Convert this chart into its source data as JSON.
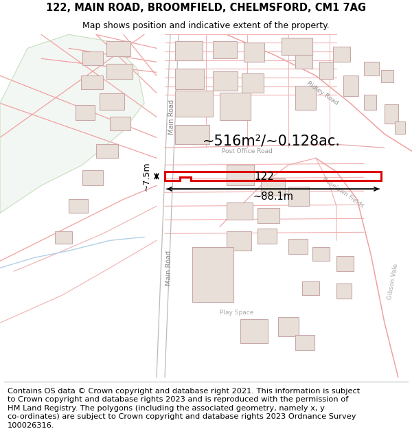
{
  "title_line1": "122, MAIN ROAD, BROOMFIELD, CHELMSFORD, CM1 7AG",
  "title_line2": "Map shows position and indicative extent of the property.",
  "area_label": "~516m²/~0.128ac.",
  "width_label": "~88.1m",
  "height_label": "~7.5m",
  "plot_number": "122",
  "bg_color": "#ffffff",
  "road_stroke": "#f0a0a0",
  "road_fill": "#fce8e8",
  "plot_outline": "#dd0000",
  "building_stroke": "#c8a8a8",
  "building_fill": "#e8e0d8",
  "label_color": "#888888",
  "dim_color": "#000000",
  "footer_fontsize": 8.2,
  "footer_lines": [
    "Contains OS data © Crown copyright and database right 2021. This information is subject",
    "to Crown copyright and database rights 2023 and is reproduced with the permission of",
    "HM Land Registry. The polygons (including the associated geometry, namely x, y",
    "co-ordinates) are subject to Crown copyright and database rights 2023 Ordnance Survey",
    "100026316."
  ]
}
